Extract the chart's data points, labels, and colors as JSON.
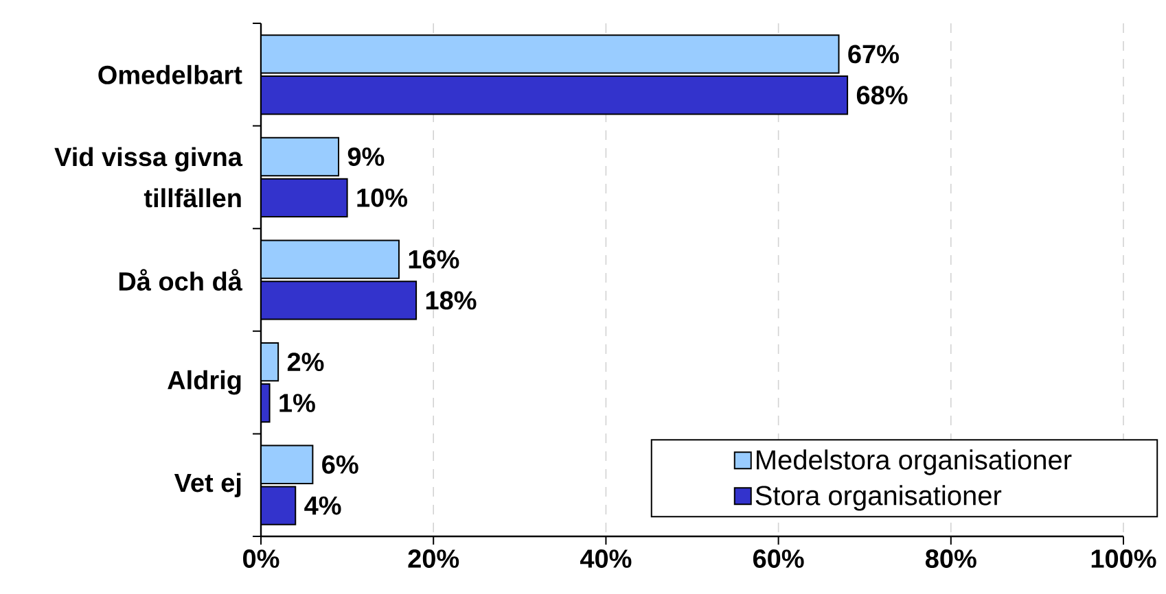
{
  "chart_data": {
    "type": "bar",
    "orientation": "horizontal",
    "categories": [
      "Omedelbart",
      "Vid vissa givna tillfällen",
      "Då och då",
      "Aldrig",
      "Vet ej"
    ],
    "series": [
      {
        "name": "Medelstora organisationer",
        "color": "#99ccff",
        "values": [
          67,
          9,
          16,
          2,
          6
        ],
        "value_labels": [
          "67%",
          "9%",
          "16%",
          "2%",
          "6%"
        ]
      },
      {
        "name": "Stora organisationer",
        "color": "#3333cc",
        "values": [
          68,
          10,
          18,
          1,
          4
        ],
        "value_labels": [
          "68%",
          "10%",
          "18%",
          "1%",
          "4%"
        ]
      }
    ],
    "xlim": [
      0,
      100
    ],
    "xticks": [
      {
        "value": 0,
        "label": "0%"
      },
      {
        "value": 20,
        "label": "20%"
      },
      {
        "value": 40,
        "label": "40%"
      },
      {
        "value": 60,
        "label": "60%"
      },
      {
        "value": 80,
        "label": "80%"
      },
      {
        "value": 100,
        "label": "100%"
      }
    ],
    "grid": "x",
    "legend": "bottom right"
  }
}
